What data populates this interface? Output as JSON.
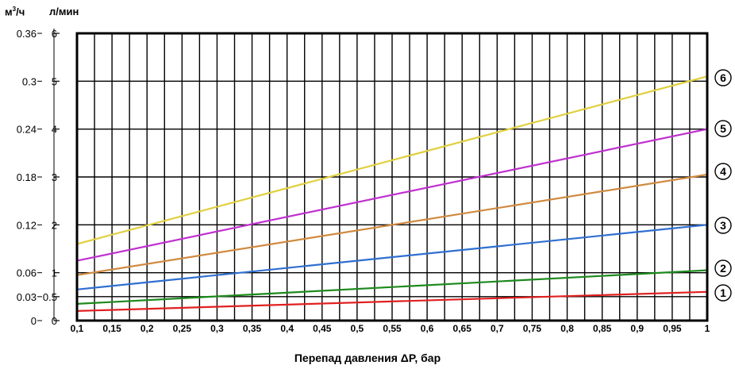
{
  "units": {
    "left_prefix": "м",
    "left_sup": "3",
    "left_suffix": "/ч",
    "right": "л/мин"
  },
  "chart_data": {
    "type": "line",
    "xlabel": "Перепад давления ΔP, бар",
    "ylabel_outer": "м³/ч",
    "ylabel_inner": "л/мин",
    "xlim": [
      0.1,
      1
    ],
    "ylim": [
      0,
      6
    ],
    "x_ticks": [
      0.1,
      0.15,
      0.2,
      0.25,
      0.3,
      0.35,
      0.4,
      0.45,
      0.5,
      0.55,
      0.6,
      0.65,
      0.7,
      0.75,
      0.8,
      0.85,
      0.9,
      0.95,
      1
    ],
    "x_tick_labels": [
      "0,1",
      "0,15",
      "0,2",
      "0,25",
      "0,3",
      "0,35",
      "0,4",
      "0,45",
      "0,5",
      "0,55",
      "0,6",
      "0,65",
      "0,7",
      "0,75",
      "0,8",
      "0,85",
      "0,9",
      "0,95",
      "1"
    ],
    "minor_x_step": 0.025,
    "y_ticks_inner": [
      {
        "value": 0,
        "label": "0"
      },
      {
        "value": 0.5,
        "label": "0.5"
      },
      {
        "value": 1,
        "label": "1"
      },
      {
        "value": 2,
        "label": "2"
      },
      {
        "value": 3,
        "label": "3"
      },
      {
        "value": 4,
        "label": "4"
      },
      {
        "value": 5,
        "label": "5"
      },
      {
        "value": 6,
        "label": "6"
      }
    ],
    "y_ticks_outer": [
      {
        "value": 0,
        "label": "0"
      },
      {
        "value": 0.5,
        "label": "0.03"
      },
      {
        "value": 1,
        "label": "0.06"
      },
      {
        "value": 2,
        "label": "0.12"
      },
      {
        "value": 3,
        "label": "0.18"
      },
      {
        "value": 4,
        "label": "0.24"
      },
      {
        "value": 5,
        "label": "0.3"
      },
      {
        "value": 6,
        "label": "0.36"
      }
    ],
    "grid": true,
    "series": [
      {
        "name": "1",
        "color": "#e02020",
        "x": [
          0.1,
          1
        ],
        "y": [
          0.2,
          0.6
        ]
      },
      {
        "name": "2",
        "color": "#1e8a1e",
        "x": [
          0.1,
          1
        ],
        "y": [
          0.35,
          1.05
        ]
      },
      {
        "name": "3",
        "color": "#2f6fd0",
        "x": [
          0.1,
          1
        ],
        "y": [
          0.65,
          2.0
        ]
      },
      {
        "name": "4",
        "color": "#d08a40",
        "x": [
          0.1,
          1
        ],
        "y": [
          0.95,
          3.05
        ]
      },
      {
        "name": "5",
        "color": "#c030d0",
        "x": [
          0.1,
          1
        ],
        "y": [
          1.25,
          4.0
        ]
      },
      {
        "name": "6",
        "color": "#e0d040",
        "x": [
          0.1,
          1
        ],
        "y": [
          1.6,
          5.1
        ]
      }
    ]
  }
}
